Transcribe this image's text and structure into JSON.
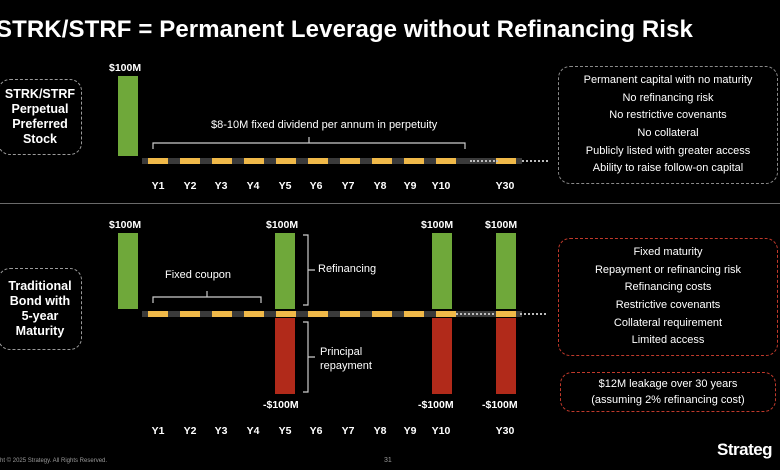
{
  "title": "STRK/STRF  =  Permanent Leverage without Refinancing Risk",
  "top": {
    "label_lines": [
      "STRK/STRF",
      "Perpetual",
      "Preferred",
      "Stock"
    ],
    "amount": "$100M",
    "dividend_note": "$8-10M fixed dividend per annum in perpetuity",
    "years": [
      "Y1",
      "Y2",
      "Y3",
      "Y4",
      "Y5",
      "Y6",
      "Y7",
      "Y8",
      "Y9",
      "Y10",
      "Y30"
    ],
    "benefits": [
      "Permanent capital with no maturity",
      "No refinancing risk",
      "No restrictive covenants",
      "No collateral",
      "Publicly listed with greater access",
      "Ability to raise follow-on capital"
    ],
    "benefit_border_color": "#8a8a8a"
  },
  "bottom": {
    "label_lines": [
      "Traditional",
      "Bond with",
      "5-year",
      "Maturity"
    ],
    "amount_start": "$100M",
    "amount_y5": "$100M",
    "amount_y10": "$100M",
    "amount_y30": "$100M",
    "neg_y5": "-$100M",
    "neg_y10": "-$100M",
    "neg_y30": "-$100M",
    "coupon_note": "Fixed coupon",
    "refinancing_note": "Refinancing",
    "principal_note_lines": [
      "Principal",
      "repayment"
    ],
    "years": [
      "Y1",
      "Y2",
      "Y3",
      "Y4",
      "Y5",
      "Y6",
      "Y7",
      "Y8",
      "Y9",
      "Y10",
      "Y30"
    ],
    "risks": [
      "Fixed maturity",
      "Repayment or refinancing risk",
      "Refinancing costs",
      "Restrictive covenants",
      "Collateral requirement",
      "Limited access"
    ],
    "leakage_lines": [
      "$12M leakage over 30 years",
      "(assuming 2% refinancing cost)"
    ],
    "risk_border_color": "#c0392b"
  },
  "colors": {
    "green": "#6fa83a",
    "red": "#b12a1a",
    "yellow": "#f0b949"
  },
  "footer": {
    "copyright": "ht © 2025 Strategy. All Rights Reserved.",
    "page_number": "31",
    "logo": "Strateg"
  }
}
